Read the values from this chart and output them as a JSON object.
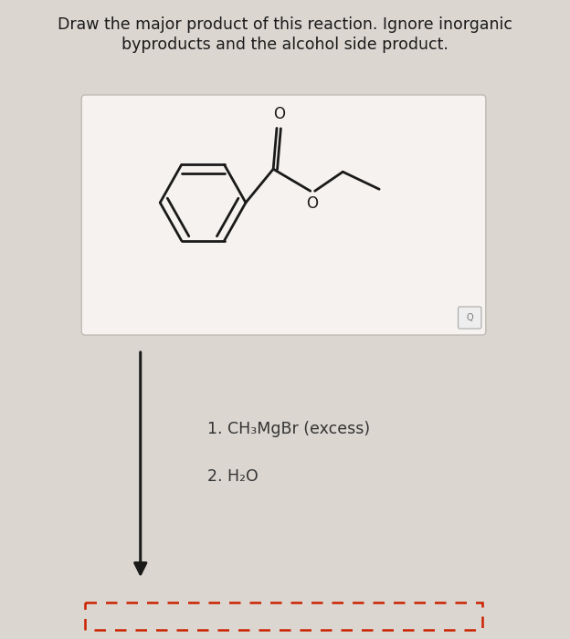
{
  "title_line1": "Draw the major product of this reaction. Ignore inorganic",
  "title_line2": "byproducts and the alcohol side product.",
  "reagent1": "1. CH₃MgBr (excess)",
  "reagent2": "2. H₂O",
  "bg_color": "#dbd6d0",
  "box_color": "#f5f2ef",
  "box_border": "#c0bab4",
  "line_color": "#1a1a1a",
  "dashed_box_color": "#cc2200",
  "title_fontsize": 12.5,
  "reagent_fontsize": 12.5,
  "structure_lw": 2.0
}
